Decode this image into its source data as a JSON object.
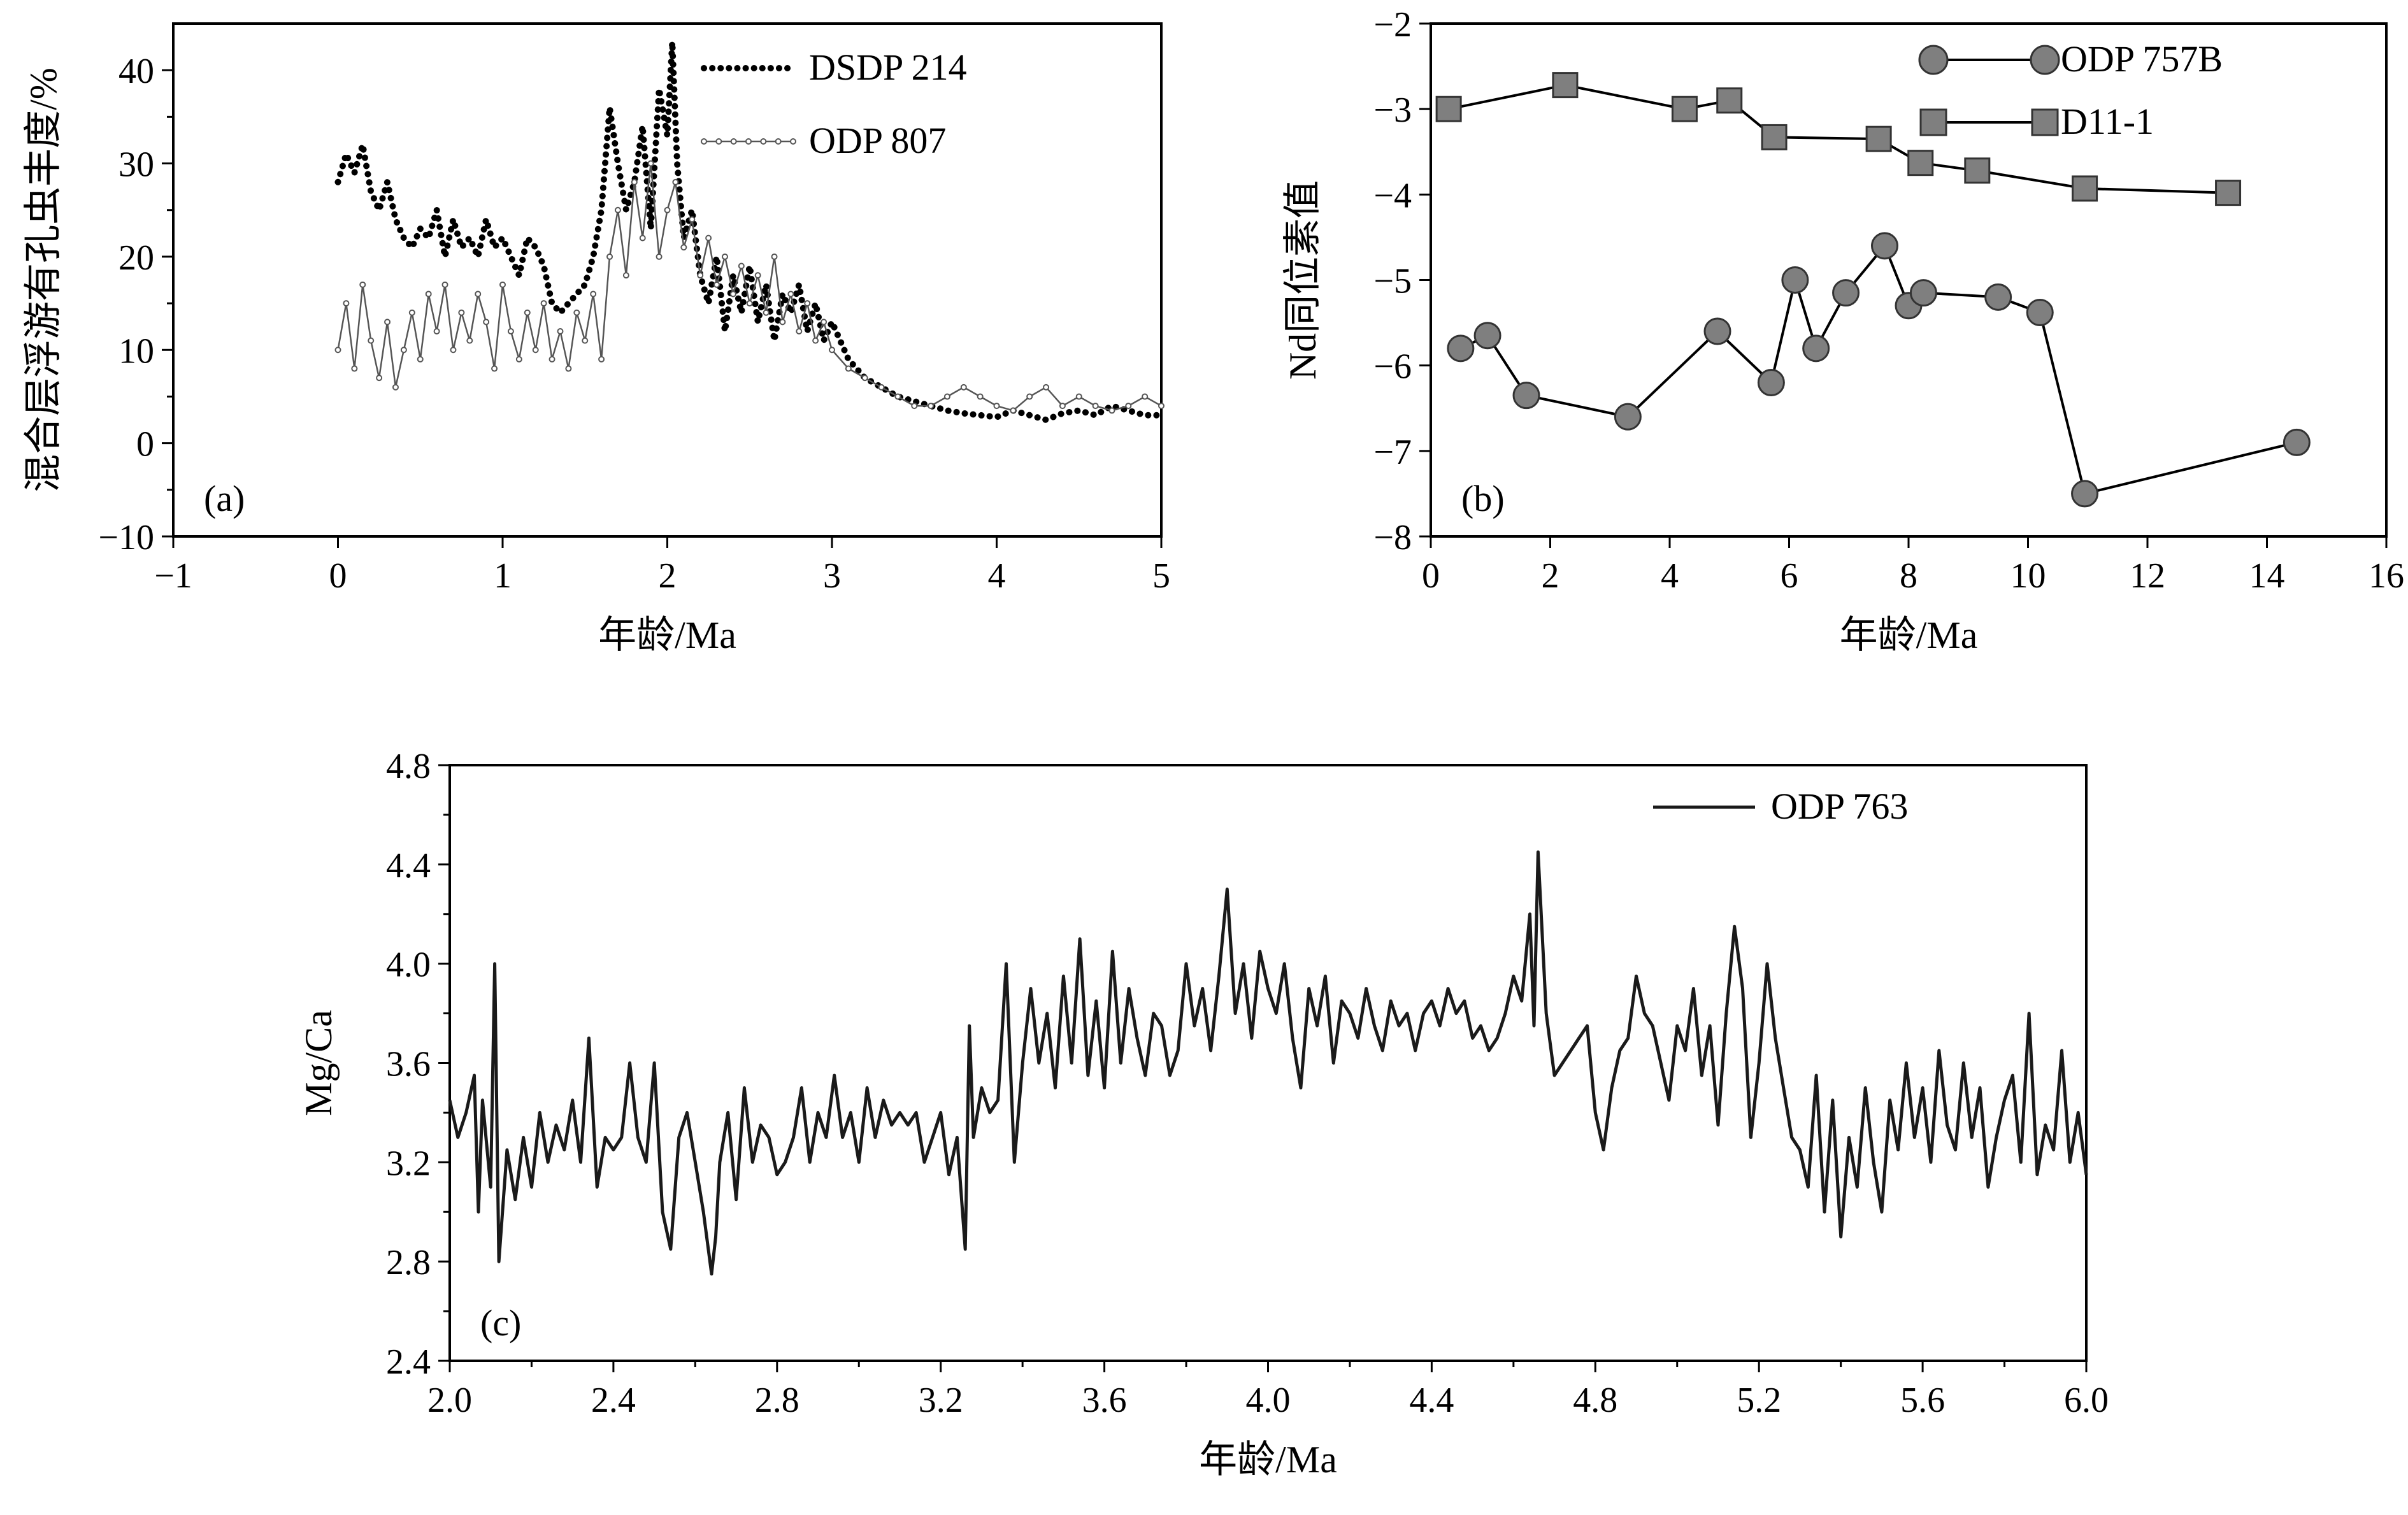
{
  "chart_data": [
    {
      "id": "a",
      "type": "line",
      "panel_label": "(a)",
      "xlabel": "年龄/Ma",
      "ylabel": "混合层浮游有孔虫丰度/%",
      "xlim": [
        -1,
        5
      ],
      "ylim": [
        -10,
        45
      ],
      "xticks": [
        -1,
        0,
        1,
        2,
        3,
        4,
        5
      ],
      "yticks": [
        -10,
        0,
        10,
        20,
        30,
        40
      ],
      "xtick_labels": [
        "−1",
        "0",
        "1",
        "2",
        "3",
        "4",
        "5"
      ],
      "ytick_labels": [
        "−10",
        "0",
        "10",
        "20",
        "30",
        "40"
      ],
      "legend_position": "top-right",
      "grid": false,
      "series": [
        {
          "name": "DSDP 214",
          "style": "dotted",
          "color": "#000000",
          "x": [
            0.0,
            0.05,
            0.1,
            0.15,
            0.2,
            0.25,
            0.3,
            0.35,
            0.4,
            0.45,
            0.5,
            0.55,
            0.6,
            0.65,
            0.7,
            0.75,
            0.8,
            0.85,
            0.9,
            0.95,
            1.0,
            1.05,
            1.1,
            1.15,
            1.2,
            1.25,
            1.3,
            1.35,
            1.4,
            1.45,
            1.5,
            1.55,
            1.6,
            1.65,
            1.7,
            1.75,
            1.8,
            1.85,
            1.9,
            1.95,
            2.0,
            2.03,
            2.06,
            2.1,
            2.15,
            2.2,
            2.25,
            2.3,
            2.35,
            2.4,
            2.45,
            2.5,
            2.55,
            2.6,
            2.65,
            2.7,
            2.75,
            2.8,
            2.85,
            2.9,
            2.95,
            3.0,
            3.1,
            3.2,
            3.3,
            3.4,
            3.5,
            3.6,
            3.7,
            3.8,
            3.9,
            4.0,
            4.1,
            4.2,
            4.3,
            4.4,
            4.5,
            4.6,
            4.7,
            4.8,
            4.9,
            5.0
          ],
          "y": [
            28,
            31,
            29,
            32,
            27,
            25,
            28,
            24,
            22,
            21,
            23,
            22,
            25,
            20,
            24,
            21,
            22,
            20,
            24,
            21,
            22,
            20,
            18,
            22,
            21,
            19,
            15,
            14,
            15,
            16,
            17,
            20,
            25,
            36,
            30,
            25,
            28,
            34,
            23,
            38,
            33,
            43,
            30,
            22,
            25,
            18,
            15,
            20,
            12,
            18,
            14,
            19,
            13,
            17,
            11,
            16,
            14,
            17,
            12,
            15,
            11,
            13,
            9,
            7,
            6,
            5,
            4.5,
            4,
            3.5,
            3.2,
            3,
            2.8,
            3.5,
            3,
            2.5,
            3.2,
            3.5,
            3,
            4,
            3.5,
            3,
            3
          ]
        },
        {
          "name": "ODP 807",
          "style": "thin-line-with-small-markers",
          "color": "#555555",
          "x": [
            0.0,
            0.05,
            0.1,
            0.15,
            0.2,
            0.25,
            0.3,
            0.35,
            0.4,
            0.45,
            0.5,
            0.55,
            0.6,
            0.65,
            0.7,
            0.75,
            0.8,
            0.85,
            0.9,
            0.95,
            1.0,
            1.05,
            1.1,
            1.15,
            1.2,
            1.25,
            1.3,
            1.35,
            1.4,
            1.45,
            1.5,
            1.55,
            1.6,
            1.65,
            1.7,
            1.75,
            1.8,
            1.85,
            1.9,
            1.95,
            2.0,
            2.05,
            2.1,
            2.15,
            2.2,
            2.25,
            2.3,
            2.35,
            2.4,
            2.45,
            2.5,
            2.55,
            2.6,
            2.65,
            2.7,
            2.75,
            2.8,
            2.85,
            2.9,
            2.95,
            3.0,
            3.1,
            3.2,
            3.3,
            3.4,
            3.5,
            3.6,
            3.7,
            3.8,
            3.9,
            4.0,
            4.1,
            4.2,
            4.3,
            4.4,
            4.5,
            4.6,
            4.7,
            4.8,
            4.9,
            5.0
          ],
          "y": [
            10,
            15,
            8,
            17,
            11,
            7,
            13,
            6,
            10,
            14,
            9,
            16,
            12,
            17,
            10,
            14,
            11,
            16,
            13,
            8,
            17,
            12,
            9,
            14,
            10,
            15,
            9,
            12,
            8,
            14,
            11,
            16,
            9,
            20,
            25,
            18,
            28,
            22,
            30,
            20,
            25,
            28,
            21,
            24,
            18,
            22,
            17,
            20,
            16,
            19,
            15,
            18,
            14,
            20,
            13,
            16,
            12,
            15,
            11,
            13,
            10,
            8,
            7,
            6,
            5,
            4,
            4,
            5,
            6,
            5,
            4,
            3.5,
            5,
            6,
            4,
            5,
            4,
            3.5,
            4,
            5,
            4
          ]
        }
      ]
    },
    {
      "id": "b",
      "type": "line",
      "panel_label": "(b)",
      "xlabel": "年龄/Ma",
      "ylabel": "Nd同位素值",
      "xlim": [
        0,
        16
      ],
      "ylim": [
        -8,
        -2
      ],
      "xticks": [
        0,
        2,
        4,
        6,
        8,
        10,
        12,
        14,
        16
      ],
      "yticks": [
        -8,
        -7,
        -6,
        -5,
        -4,
        -3,
        -2
      ],
      "xtick_labels": [
        "0",
        "2",
        "4",
        "6",
        "8",
        "10",
        "12",
        "14",
        "16"
      ],
      "ytick_labels": [
        "−8",
        "−7",
        "−6",
        "−5",
        "−4",
        "−3",
        "−2"
      ],
      "legend_position": "top-right",
      "grid": false,
      "series": [
        {
          "name": "ODP 757B",
          "marker": "circle",
          "color": "#7f7f7f",
          "x": [
            0.5,
            0.95,
            1.6,
            3.3,
            4.8,
            5.7,
            6.1,
            6.45,
            6.95,
            7.6,
            8.0,
            8.25,
            9.5,
            10.2,
            10.95,
            14.5
          ],
          "y": [
            -5.8,
            -5.65,
            -6.35,
            -6.6,
            -5.6,
            -6.2,
            -5.0,
            -5.8,
            -5.15,
            -4.6,
            -5.3,
            -5.15,
            -5.2,
            -5.38,
            -7.5,
            -6.9
          ]
        },
        {
          "name": "D11-1",
          "marker": "square",
          "color": "#7f7f7f",
          "x": [
            0.3,
            2.25,
            4.25,
            5.0,
            5.75,
            7.5,
            8.2,
            9.15,
            10.95,
            13.35
          ],
          "y": [
            -3.0,
            -2.72,
            -3.0,
            -2.9,
            -3.33,
            -3.35,
            -3.63,
            -3.72,
            -3.93,
            -3.98
          ]
        }
      ]
    },
    {
      "id": "c",
      "type": "line",
      "panel_label": "(c)",
      "xlabel": "年龄/Ma",
      "ylabel": "Mg/Ca",
      "xlim": [
        2.0,
        6.0
      ],
      "ylim": [
        2.4,
        4.8
      ],
      "xticks": [
        2.0,
        2.4,
        2.8,
        3.2,
        3.6,
        4.0,
        4.4,
        4.8,
        5.2,
        5.6,
        6.0
      ],
      "yticks": [
        2.4,
        2.8,
        3.2,
        3.6,
        4.0,
        4.4,
        4.8
      ],
      "xtick_labels": [
        "2.0",
        "2.4",
        "2.8",
        "3.2",
        "3.6",
        "4.0",
        "4.4",
        "4.8",
        "5.2",
        "5.6",
        "6.0"
      ],
      "ytick_labels": [
        "2.4",
        "2.8",
        "3.2",
        "3.6",
        "4.0",
        "4.4",
        "4.8"
      ],
      "legend_position": "top-right",
      "grid": false,
      "series": [
        {
          "name": "ODP 763",
          "color": "#1a1a1a",
          "x": [
            2.0,
            2.02,
            2.04,
            2.06,
            2.07,
            2.08,
            2.1,
            2.11,
            2.12,
            2.14,
            2.16,
            2.18,
            2.2,
            2.22,
            2.24,
            2.26,
            2.28,
            2.3,
            2.32,
            2.34,
            2.36,
            2.38,
            2.4,
            2.42,
            2.44,
            2.46,
            2.48,
            2.5,
            2.52,
            2.54,
            2.56,
            2.58,
            2.6,
            2.62,
            2.64,
            2.65,
            2.66,
            2.68,
            2.7,
            2.72,
            2.74,
            2.76,
            2.78,
            2.8,
            2.82,
            2.84,
            2.86,
            2.88,
            2.9,
            2.92,
            2.94,
            2.96,
            2.98,
            3.0,
            3.02,
            3.04,
            3.06,
            3.08,
            3.1,
            3.12,
            3.14,
            3.16,
            3.18,
            3.2,
            3.22,
            3.24,
            3.26,
            3.27,
            3.28,
            3.3,
            3.32,
            3.34,
            3.36,
            3.38,
            3.4,
            3.42,
            3.44,
            3.46,
            3.48,
            3.5,
            3.52,
            3.54,
            3.56,
            3.58,
            3.6,
            3.62,
            3.64,
            3.66,
            3.68,
            3.7,
            3.72,
            3.74,
            3.76,
            3.78,
            3.8,
            3.82,
            3.84,
            3.86,
            3.88,
            3.9,
            3.92,
            3.94,
            3.96,
            3.98,
            4.0,
            4.02,
            4.04,
            4.06,
            4.08,
            4.1,
            4.12,
            4.14,
            4.16,
            4.18,
            4.2,
            4.22,
            4.24,
            4.26,
            4.28,
            4.3,
            4.32,
            4.34,
            4.36,
            4.38,
            4.4,
            4.42,
            4.44,
            4.46,
            4.48,
            4.5,
            4.52,
            4.54,
            4.56,
            4.58,
            4.6,
            4.62,
            4.64,
            4.65,
            4.66,
            4.68,
            4.7,
            4.72,
            4.74,
            4.76,
            4.78,
            4.8,
            4.82,
            4.84,
            4.86,
            4.88,
            4.9,
            4.92,
            4.94,
            4.96,
            4.98,
            5.0,
            5.02,
            5.04,
            5.06,
            5.08,
            5.1,
            5.12,
            5.14,
            5.16,
            5.18,
            5.2,
            5.22,
            5.24,
            5.26,
            5.28,
            5.3,
            5.32,
            5.34,
            5.36,
            5.38,
            5.4,
            5.42,
            5.44,
            5.46,
            5.48,
            5.5,
            5.52,
            5.54,
            5.56,
            5.58,
            5.6,
            5.62,
            5.64,
            5.66,
            5.68,
            5.7,
            5.72,
            5.74,
            5.76,
            5.78,
            5.8,
            5.82,
            5.84,
            5.86,
            5.88,
            5.9,
            5.92,
            5.94,
            5.96,
            5.98,
            6.0
          ],
          "y": [
            3.45,
            3.3,
            3.4,
            3.55,
            3.0,
            3.45,
            3.1,
            4.0,
            2.8,
            3.25,
            3.05,
            3.3,
            3.1,
            3.4,
            3.2,
            3.35,
            3.25,
            3.45,
            3.2,
            3.7,
            3.1,
            3.3,
            3.25,
            3.3,
            3.6,
            3.3,
            3.2,
            3.6,
            3.0,
            2.85,
            3.3,
            3.4,
            3.2,
            3.0,
            2.75,
            2.9,
            3.2,
            3.4,
            3.05,
            3.5,
            3.2,
            3.35,
            3.3,
            3.15,
            3.2,
            3.3,
            3.5,
            3.2,
            3.4,
            3.3,
            3.55,
            3.3,
            3.4,
            3.2,
            3.5,
            3.3,
            3.45,
            3.35,
            3.4,
            3.35,
            3.4,
            3.2,
            3.3,
            3.4,
            3.15,
            3.3,
            2.85,
            3.75,
            3.3,
            3.5,
            3.4,
            3.45,
            4.0,
            3.2,
            3.6,
            3.9,
            3.6,
            3.8,
            3.5,
            3.95,
            3.6,
            4.1,
            3.55,
            3.85,
            3.5,
            4.05,
            3.6,
            3.9,
            3.7,
            3.55,
            3.8,
            3.75,
            3.55,
            3.65,
            4.0,
            3.75,
            3.9,
            3.65,
            3.95,
            4.3,
            3.8,
            4.0,
            3.7,
            4.05,
            3.9,
            3.8,
            4.0,
            3.7,
            3.5,
            3.9,
            3.75,
            3.95,
            3.6,
            3.85,
            3.8,
            3.7,
            3.9,
            3.75,
            3.65,
            3.85,
            3.75,
            3.8,
            3.65,
            3.8,
            3.85,
            3.75,
            3.9,
            3.8,
            3.85,
            3.7,
            3.75,
            3.65,
            3.7,
            3.8,
            3.95,
            3.85,
            4.2,
            3.75,
            4.45,
            3.8,
            3.55,
            3.6,
            3.65,
            3.7,
            3.75,
            3.4,
            3.25,
            3.5,
            3.65,
            3.7,
            3.95,
            3.8,
            3.75,
            3.6,
            3.45,
            3.75,
            3.65,
            3.9,
            3.55,
            3.75,
            3.35,
            3.8,
            4.15,
            3.9,
            3.3,
            3.6,
            4.0,
            3.7,
            3.5,
            3.3,
            3.25,
            3.1,
            3.55,
            3.0,
            3.45,
            2.9,
            3.3,
            3.1,
            3.5,
            3.2,
            3.0,
            3.45,
            3.25,
            3.6,
            3.3,
            3.5,
            3.2,
            3.65,
            3.35,
            3.25,
            3.6,
            3.3,
            3.5,
            3.1,
            3.3,
            3.45,
            3.55,
            3.2,
            3.8,
            3.15,
            3.35,
            3.25,
            3.65,
            3.2,
            3.4,
            3.15
          ]
        }
      ]
    }
  ]
}
